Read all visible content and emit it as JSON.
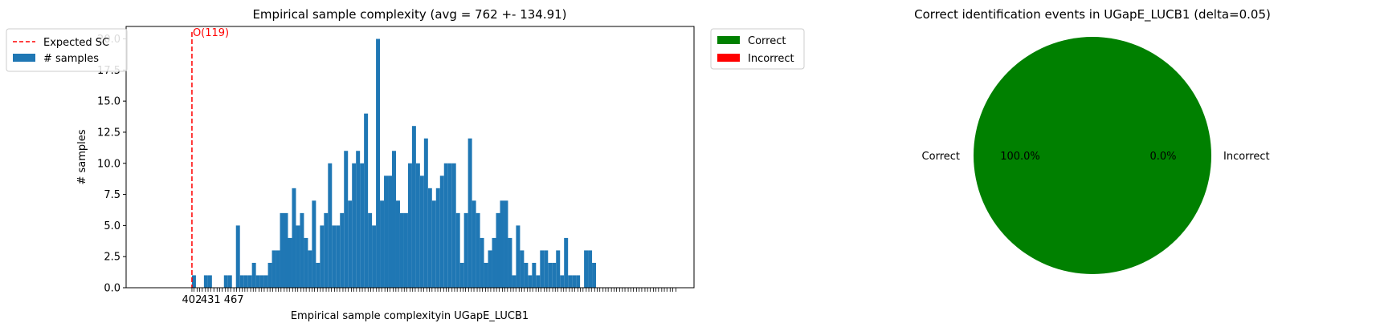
{
  "chart_data": [
    {
      "type": "bar",
      "title": "Empirical sample complexity (avg = 762 +- 134.91)",
      "xlabel": "Empirical sample complexityin UGapE_LUCB1",
      "ylabel": "# samples",
      "ylim": [
        0,
        21
      ],
      "yticks": [
        "0.0",
        "2.5",
        "5.0",
        "7.5",
        "10.0",
        "12.5",
        "15.0",
        "17.5",
        "20.0"
      ],
      "ytick_values": [
        0,
        2.5,
        5,
        7.5,
        10,
        12.5,
        15,
        17.5,
        20
      ],
      "xlim": [
        300,
        1180
      ],
      "visible_xtick_labels": [
        {
          "x": 402,
          "label": "402"
        },
        {
          "x": 431,
          "label": "431"
        },
        {
          "x": 467,
          "label": "467"
        }
      ],
      "extra_xtick_positions": [
        405,
        410,
        414,
        418,
        423,
        427,
        436,
        441,
        445,
        449,
        454,
        458,
        462,
        471,
        476,
        480,
        484,
        488,
        493,
        497,
        501,
        506,
        510,
        514,
        519,
        523,
        527,
        532,
        536,
        540,
        545,
        549,
        553,
        558,
        562,
        566,
        571,
        575,
        579,
        584,
        588,
        592,
        597,
        601,
        605,
        610,
        614,
        618,
        623,
        627,
        631,
        636,
        640,
        644,
        649,
        653,
        657,
        662,
        666,
        670,
        675,
        679,
        683,
        688,
        692,
        696,
        701,
        705,
        709,
        714,
        718,
        722,
        727,
        731,
        735,
        740,
        744,
        748,
        753,
        757,
        761,
        766,
        770,
        774,
        779,
        783,
        787,
        792,
        796,
        800,
        805,
        809,
        813,
        818,
        822,
        826,
        831,
        835,
        839,
        844,
        848,
        852,
        857,
        861,
        865,
        870,
        874,
        878,
        883,
        887,
        891,
        896,
        900,
        904,
        909,
        913,
        917,
        922,
        926,
        930,
        935,
        939,
        943,
        948,
        952,
        956,
        961,
        965,
        969,
        974,
        978,
        982,
        987,
        991,
        995,
        1000,
        1004,
        1008,
        1013,
        1017,
        1021,
        1026,
        1030,
        1034,
        1039,
        1043,
        1047,
        1052,
        1056,
        1060,
        1065,
        1069,
        1073,
        1078,
        1082,
        1086,
        1091,
        1095,
        1099,
        1104,
        1108,
        1112,
        1117,
        1121,
        1125,
        1130,
        1134,
        1138,
        1143,
        1147,
        1152
      ],
      "bin_start": 402,
      "bin_width": 6.2,
      "values": [
        1,
        0,
        0,
        1,
        1,
        0,
        0,
        0,
        1,
        1,
        0,
        5,
        1,
        1,
        1,
        2,
        1,
        1,
        1,
        2,
        3,
        3,
        6,
        6,
        4,
        8,
        5,
        6,
        4,
        3,
        7,
        2,
        5,
        6,
        10,
        5,
        5,
        6,
        11,
        7,
        10,
        11,
        10,
        14,
        6,
        5,
        20,
        7,
        9,
        9,
        11,
        7,
        6,
        6,
        10,
        13,
        10,
        9,
        12,
        8,
        7,
        8,
        9,
        10,
        10,
        10,
        6,
        2,
        6,
        12,
        7,
        6,
        4,
        2,
        3,
        4,
        6,
        7,
        7,
        4,
        1,
        5,
        3,
        2,
        1,
        2,
        1,
        3,
        3,
        2,
        2,
        3,
        1,
        4,
        1,
        1,
        1,
        0,
        3,
        3,
        2
      ],
      "color": "#1f77b4",
      "reference_line": {
        "x": 402,
        "label": "O(119)",
        "color": "#ff0000"
      },
      "legend": {
        "placement": "outside-left",
        "entries": [
          {
            "label": "Expected SC",
            "kind": "dashed-line",
            "color": "#ff0000"
          },
          {
            "label": "# samples",
            "kind": "patch",
            "color": "#1f77b4"
          }
        ]
      }
    },
    {
      "type": "pie",
      "title": "Correct identification events in UGapE_LUCB1 (delta=0.05)",
      "slices": [
        {
          "label": "Correct",
          "value": 100.0,
          "pct_label": "100.0%",
          "color": "#008000"
        },
        {
          "label": "Incorrect",
          "value": 0.0,
          "pct_label": "0.0%",
          "color": "#ff0000"
        }
      ],
      "legend": {
        "placement": "upper-left-outside",
        "entries": [
          {
            "label": "Correct",
            "color": "#008000"
          },
          {
            "label": "Incorrect",
            "color": "#ff0000"
          }
        ]
      }
    }
  ]
}
